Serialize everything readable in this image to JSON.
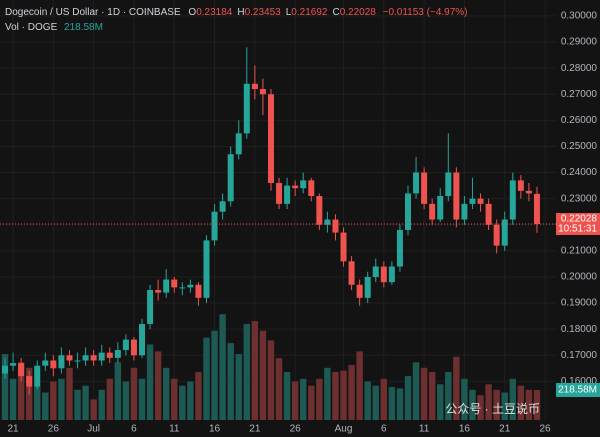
{
  "header": {
    "title": "Dogecoin / US Dollar · 1D · COINBASE",
    "ohlc": [
      {
        "label": "O",
        "value": "0.23184"
      },
      {
        "label": "H",
        "value": "0.23453"
      },
      {
        "label": "L",
        "value": "0.21692"
      },
      {
        "label": "C",
        "value": "0.22028"
      }
    ],
    "change": "−0.01153 (−4.97%)",
    "volume_label": "Vol · DOGE",
    "volume_value": "218.58M",
    "countdown": "10:51:31",
    "watermark": "公众号 · 土豆说币"
  },
  "chart_data": {
    "type": "candlestick",
    "categories": [
      null,
      "21",
      null,
      null,
      null,
      null,
      "26",
      null,
      null,
      null,
      null,
      "Jul",
      null,
      null,
      null,
      null,
      "6",
      null,
      null,
      null,
      null,
      "11",
      null,
      null,
      null,
      null,
      "16",
      null,
      null,
      null,
      null,
      "21",
      null,
      null,
      null,
      null,
      "26",
      null,
      null,
      null,
      null,
      null,
      "Aug",
      null,
      null,
      null,
      null,
      "6",
      null,
      null,
      null,
      null,
      "11",
      null,
      null,
      null,
      null,
      "16",
      null,
      null,
      null,
      null,
      "21",
      null,
      null,
      null,
      null,
      "26"
    ],
    "open": [
      0.163,
      0.166,
      0.167,
      0.162,
      0.158,
      0.166,
      0.168,
      0.165,
      0.17,
      0.168,
      0.168,
      0.17,
      0.168,
      0.171,
      0.169,
      0.172,
      0.176,
      0.17,
      0.182,
      0.195,
      0.194,
      0.199,
      0.196,
      0.196,
      0.197,
      0.192,
      0.214,
      0.225,
      0.229,
      0.247,
      0.255,
      0.274,
      0.272,
      0.27,
      0.236,
      0.228,
      0.235,
      0.234,
      0.237,
      0.231,
      0.22,
      0.222,
      0.217,
      0.206,
      0.197,
      0.192,
      0.2,
      0.204,
      0.198,
      0.204,
      0.218,
      0.232,
      0.24,
      0.228,
      0.222,
      0.231,
      0.24,
      0.222,
      0.228,
      0.23,
      0.228,
      0.22,
      0.212,
      0.222,
      0.237,
      0.233,
      0.23184,
      null
    ],
    "high": [
      0.169,
      0.171,
      0.169,
      0.164,
      0.168,
      0.171,
      0.17,
      0.173,
      0.172,
      0.171,
      0.173,
      0.172,
      0.174,
      0.173,
      0.175,
      0.178,
      0.177,
      0.184,
      0.197,
      0.199,
      0.203,
      0.2,
      0.198,
      0.199,
      0.198,
      0.216,
      0.228,
      0.232,
      0.25,
      0.26,
      0.288,
      0.281,
      0.276,
      0.272,
      0.238,
      0.238,
      0.237,
      0.24,
      0.238,
      0.232,
      0.225,
      0.224,
      0.219,
      0.208,
      0.199,
      0.202,
      0.207,
      0.206,
      0.206,
      0.22,
      0.235,
      0.246,
      0.242,
      0.23,
      0.234,
      0.255,
      0.242,
      0.231,
      0.238,
      0.232,
      0.23,
      0.222,
      0.225,
      0.24,
      0.239,
      0.236,
      0.23453,
      null
    ],
    "low": [
      0.161,
      0.164,
      0.16,
      0.155,
      0.157,
      0.164,
      0.162,
      0.163,
      0.166,
      0.165,
      0.166,
      0.166,
      0.166,
      0.167,
      0.167,
      0.17,
      0.168,
      0.169,
      0.18,
      0.191,
      0.192,
      0.194,
      0.193,
      0.194,
      0.189,
      0.19,
      0.212,
      0.222,
      0.227,
      0.245,
      0.253,
      0.268,
      0.262,
      0.233,
      0.226,
      0.226,
      0.231,
      0.232,
      0.229,
      0.218,
      0.217,
      0.214,
      0.204,
      0.195,
      0.189,
      0.19,
      0.198,
      0.196,
      0.197,
      0.202,
      0.216,
      0.23,
      0.226,
      0.22,
      0.221,
      0.229,
      0.219,
      0.22,
      0.226,
      0.225,
      0.218,
      0.209,
      0.21,
      0.22,
      0.23,
      0.229,
      0.21692,
      null
    ],
    "close": [
      0.166,
      0.167,
      0.162,
      0.158,
      0.166,
      0.168,
      0.165,
      0.17,
      0.168,
      0.168,
      0.17,
      0.168,
      0.171,
      0.169,
      0.172,
      0.176,
      0.17,
      0.182,
      0.195,
      0.194,
      0.199,
      0.196,
      0.196,
      0.197,
      0.192,
      0.214,
      0.225,
      0.229,
      0.247,
      0.255,
      0.274,
      0.272,
      0.27,
      0.236,
      0.228,
      0.235,
      0.234,
      0.237,
      0.231,
      0.22,
      0.222,
      0.217,
      0.206,
      0.197,
      0.192,
      0.2,
      0.204,
      0.198,
      0.204,
      0.218,
      0.232,
      0.24,
      0.228,
      0.222,
      0.231,
      0.24,
      0.222,
      0.228,
      0.23,
      0.228,
      0.22,
      0.212,
      0.222,
      0.237,
      0.233,
      0.232,
      0.22028,
      null
    ],
    "volume": [
      480,
      300,
      420,
      380,
      250,
      200,
      280,
      300,
      380,
      220,
      250,
      150,
      220,
      300,
      420,
      280,
      380,
      300,
      550,
      500,
      380,
      300,
      250,
      280,
      350,
      600,
      650,
      770,
      560,
      480,
      700,
      720,
      650,
      580,
      450,
      350,
      280,
      300,
      250,
      300,
      380,
      350,
      360,
      400,
      500,
      280,
      250,
      300,
      240,
      230,
      320,
      420,
      380,
      350,
      260,
      350,
      460,
      300,
      220,
      180,
      260,
      220,
      200,
      300,
      250,
      220,
      218.58,
      null
    ],
    "up_color": "#26a69a",
    "down_color": "#ef5350",
    "up_volume_color": "#1d5a54",
    "down_volume_color": "#6e2f30",
    "ylim": [
      0.1452,
      0.3061
    ],
    "volume_lim": [
      0,
      1500
    ],
    "yticks": [
      {
        "value": 0.16,
        "label": "0.16000"
      },
      {
        "value": 0.17,
        "label": "0.17000"
      },
      {
        "value": 0.18,
        "label": "0.18000"
      },
      {
        "value": 0.19,
        "label": "0.19000"
      },
      {
        "value": 0.2,
        "label": "0.20000"
      },
      {
        "value": 0.21,
        "label": "0.21000"
      },
      {
        "value": 0.22,
        "label": "0.22000"
      },
      {
        "value": 0.23,
        "label": "0.23000"
      },
      {
        "value": 0.24,
        "label": "0.24000"
      },
      {
        "value": 0.25,
        "label": "0.25000"
      },
      {
        "value": 0.26,
        "label": "0.26000"
      },
      {
        "value": 0.27,
        "label": "0.27000"
      },
      {
        "value": 0.28,
        "label": "0.28000"
      },
      {
        "value": 0.29,
        "label": "0.29000"
      },
      {
        "value": 0.3,
        "label": "0.30000"
      }
    ],
    "grid": true
  }
}
